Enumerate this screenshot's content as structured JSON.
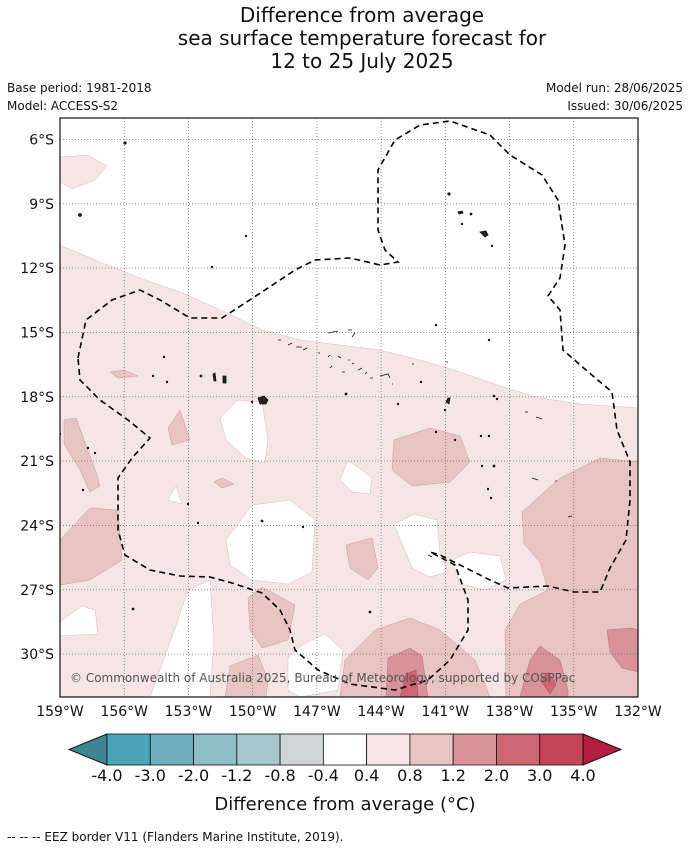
{
  "title": {
    "line1": "Difference from average",
    "line2": "sea surface temperature forecast for",
    "line3": "12 to 25 July 2025"
  },
  "meta": {
    "base_period": "Base period: 1981-2018",
    "model": "Model: ACCESS-S2",
    "model_run": "Model run: 28/06/2025",
    "issued": "Issued: 30/06/2025"
  },
  "map": {
    "lon_range": [
      -159,
      -132
    ],
    "lat_range": [
      -32,
      -5
    ],
    "lon_ticks": [
      {
        "value": -159,
        "label": "159°W"
      },
      {
        "value": -156,
        "label": "156°W"
      },
      {
        "value": -153,
        "label": "153°W"
      },
      {
        "value": -150,
        "label": "150°W"
      },
      {
        "value": -147,
        "label": "147°W"
      },
      {
        "value": -144,
        "label": "144°W"
      },
      {
        "value": -141,
        "label": "141°W"
      },
      {
        "value": -138,
        "label": "138°W"
      },
      {
        "value": -135,
        "label": "135°W"
      },
      {
        "value": -132,
        "label": "132°W"
      }
    ],
    "lat_ticks": [
      {
        "value": -6,
        "label": "6°S"
      },
      {
        "value": -9,
        "label": "9°S"
      },
      {
        "value": -12,
        "label": "12°S"
      },
      {
        "value": -15,
        "label": "15°S"
      },
      {
        "value": -18,
        "label": "18°S"
      },
      {
        "value": -21,
        "label": "21°S"
      },
      {
        "value": -24,
        "label": "24°S"
      },
      {
        "value": -27,
        "label": "27°S"
      },
      {
        "value": -30,
        "label": "30°S"
      }
    ],
    "grid": true,
    "copyright": "© Commonwealth of Australia 2025, Bureau of Meteorology, supported by COSPPac"
  },
  "colorbar": {
    "labels": [
      "-4.0",
      "-3.0",
      "-2.0",
      "-1.2",
      "-0.8",
      "-0.4",
      "0.4",
      "0.8",
      "1.2",
      "2.0",
      "3.0",
      "4.0"
    ],
    "colors": [
      "#3f8790",
      "#4aa5b6",
      "#6eb0c0",
      "#8fbdc8",
      "#a8c7cc",
      "#cfd6d8",
      "#ffffff",
      "#f5e6e5",
      "#e8c4c2",
      "#d9929a",
      "#cc6672",
      "#c24658",
      "#b41d3e"
    ],
    "title": "Difference from average (°C)"
  },
  "footnote": "--  --  -- EEZ border V11 (Flanders Marine Institute, 2019)."
}
